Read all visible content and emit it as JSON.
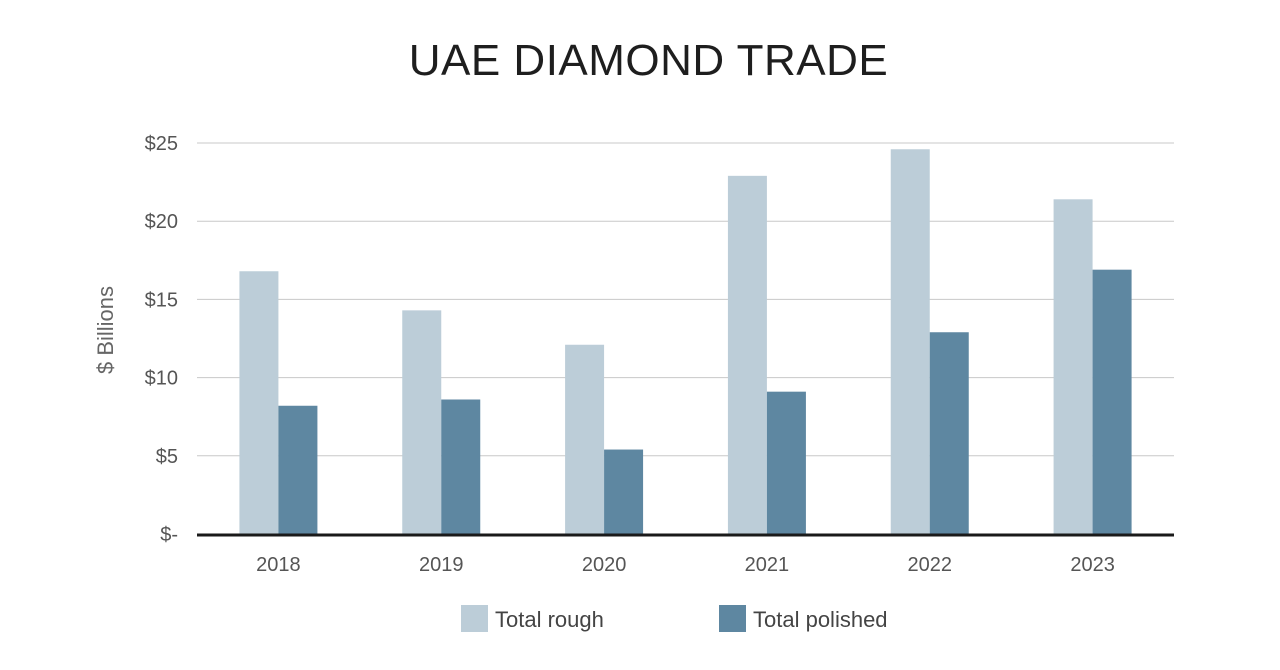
{
  "chart_data": {
    "type": "bar",
    "title": "UAE DIAMOND TRADE",
    "xlabel": "",
    "ylabel": "$ Billions",
    "categories": [
      "2018",
      "2019",
      "2020",
      "2021",
      "2022",
      "2023"
    ],
    "series": [
      {
        "name": "Total rough",
        "color": "#bccdd8",
        "values": [
          16.8,
          14.3,
          12.1,
          22.9,
          24.6,
          21.4
        ]
      },
      {
        "name": "Total polished",
        "color": "#5e87a1",
        "values": [
          8.2,
          8.6,
          5.4,
          9.1,
          12.9,
          16.9
        ]
      }
    ],
    "ylim": [
      0,
      25
    ],
    "yticks": [
      0,
      5,
      10,
      15,
      20,
      25
    ],
    "ytick_labels": [
      "$-",
      "$5",
      "$10",
      "$15",
      "$20",
      "$25"
    ],
    "grid": true,
    "legend_position": "bottom"
  }
}
